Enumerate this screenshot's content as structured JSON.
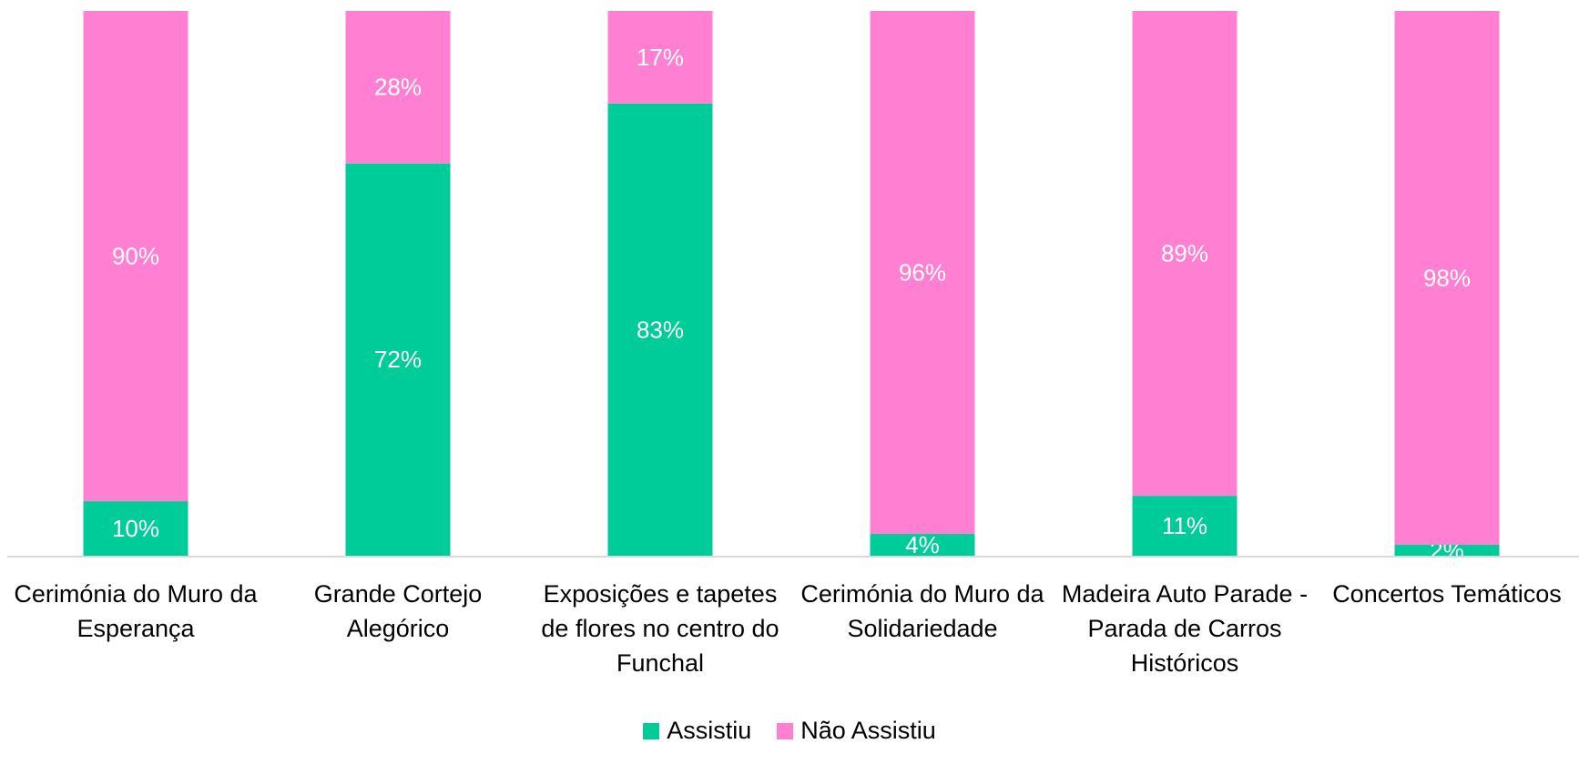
{
  "chart_data": {
    "type": "stacked_bar",
    "categories": [
      "Cerimónia do Muro da Esperança",
      "Grande Cortejo Alegórico",
      "Exposições e tapetes de flores no centro do Funchal",
      "Cerimónia do Muro da Solidariedade",
      "Madeira Auto Parade - Parada de Carros Históricos",
      "Concertos Temáticos"
    ],
    "series": [
      {
        "name": "Assistiu",
        "color": "#00cc99",
        "values": [
          10,
          72,
          83,
          4,
          11,
          2
        ],
        "value_labels": [
          "10%",
          "72%",
          "83%",
          "4%",
          "11%",
          "2%"
        ]
      },
      {
        "name": "Não Assistiu",
        "color": "#ff80d2",
        "values": [
          90,
          28,
          17,
          96,
          89,
          98
        ],
        "value_labels": [
          "90%",
          "28%",
          "17%",
          "96%",
          "89%",
          "98%"
        ]
      }
    ],
    "ylim": [
      0,
      100
    ],
    "legend": "bottom"
  }
}
